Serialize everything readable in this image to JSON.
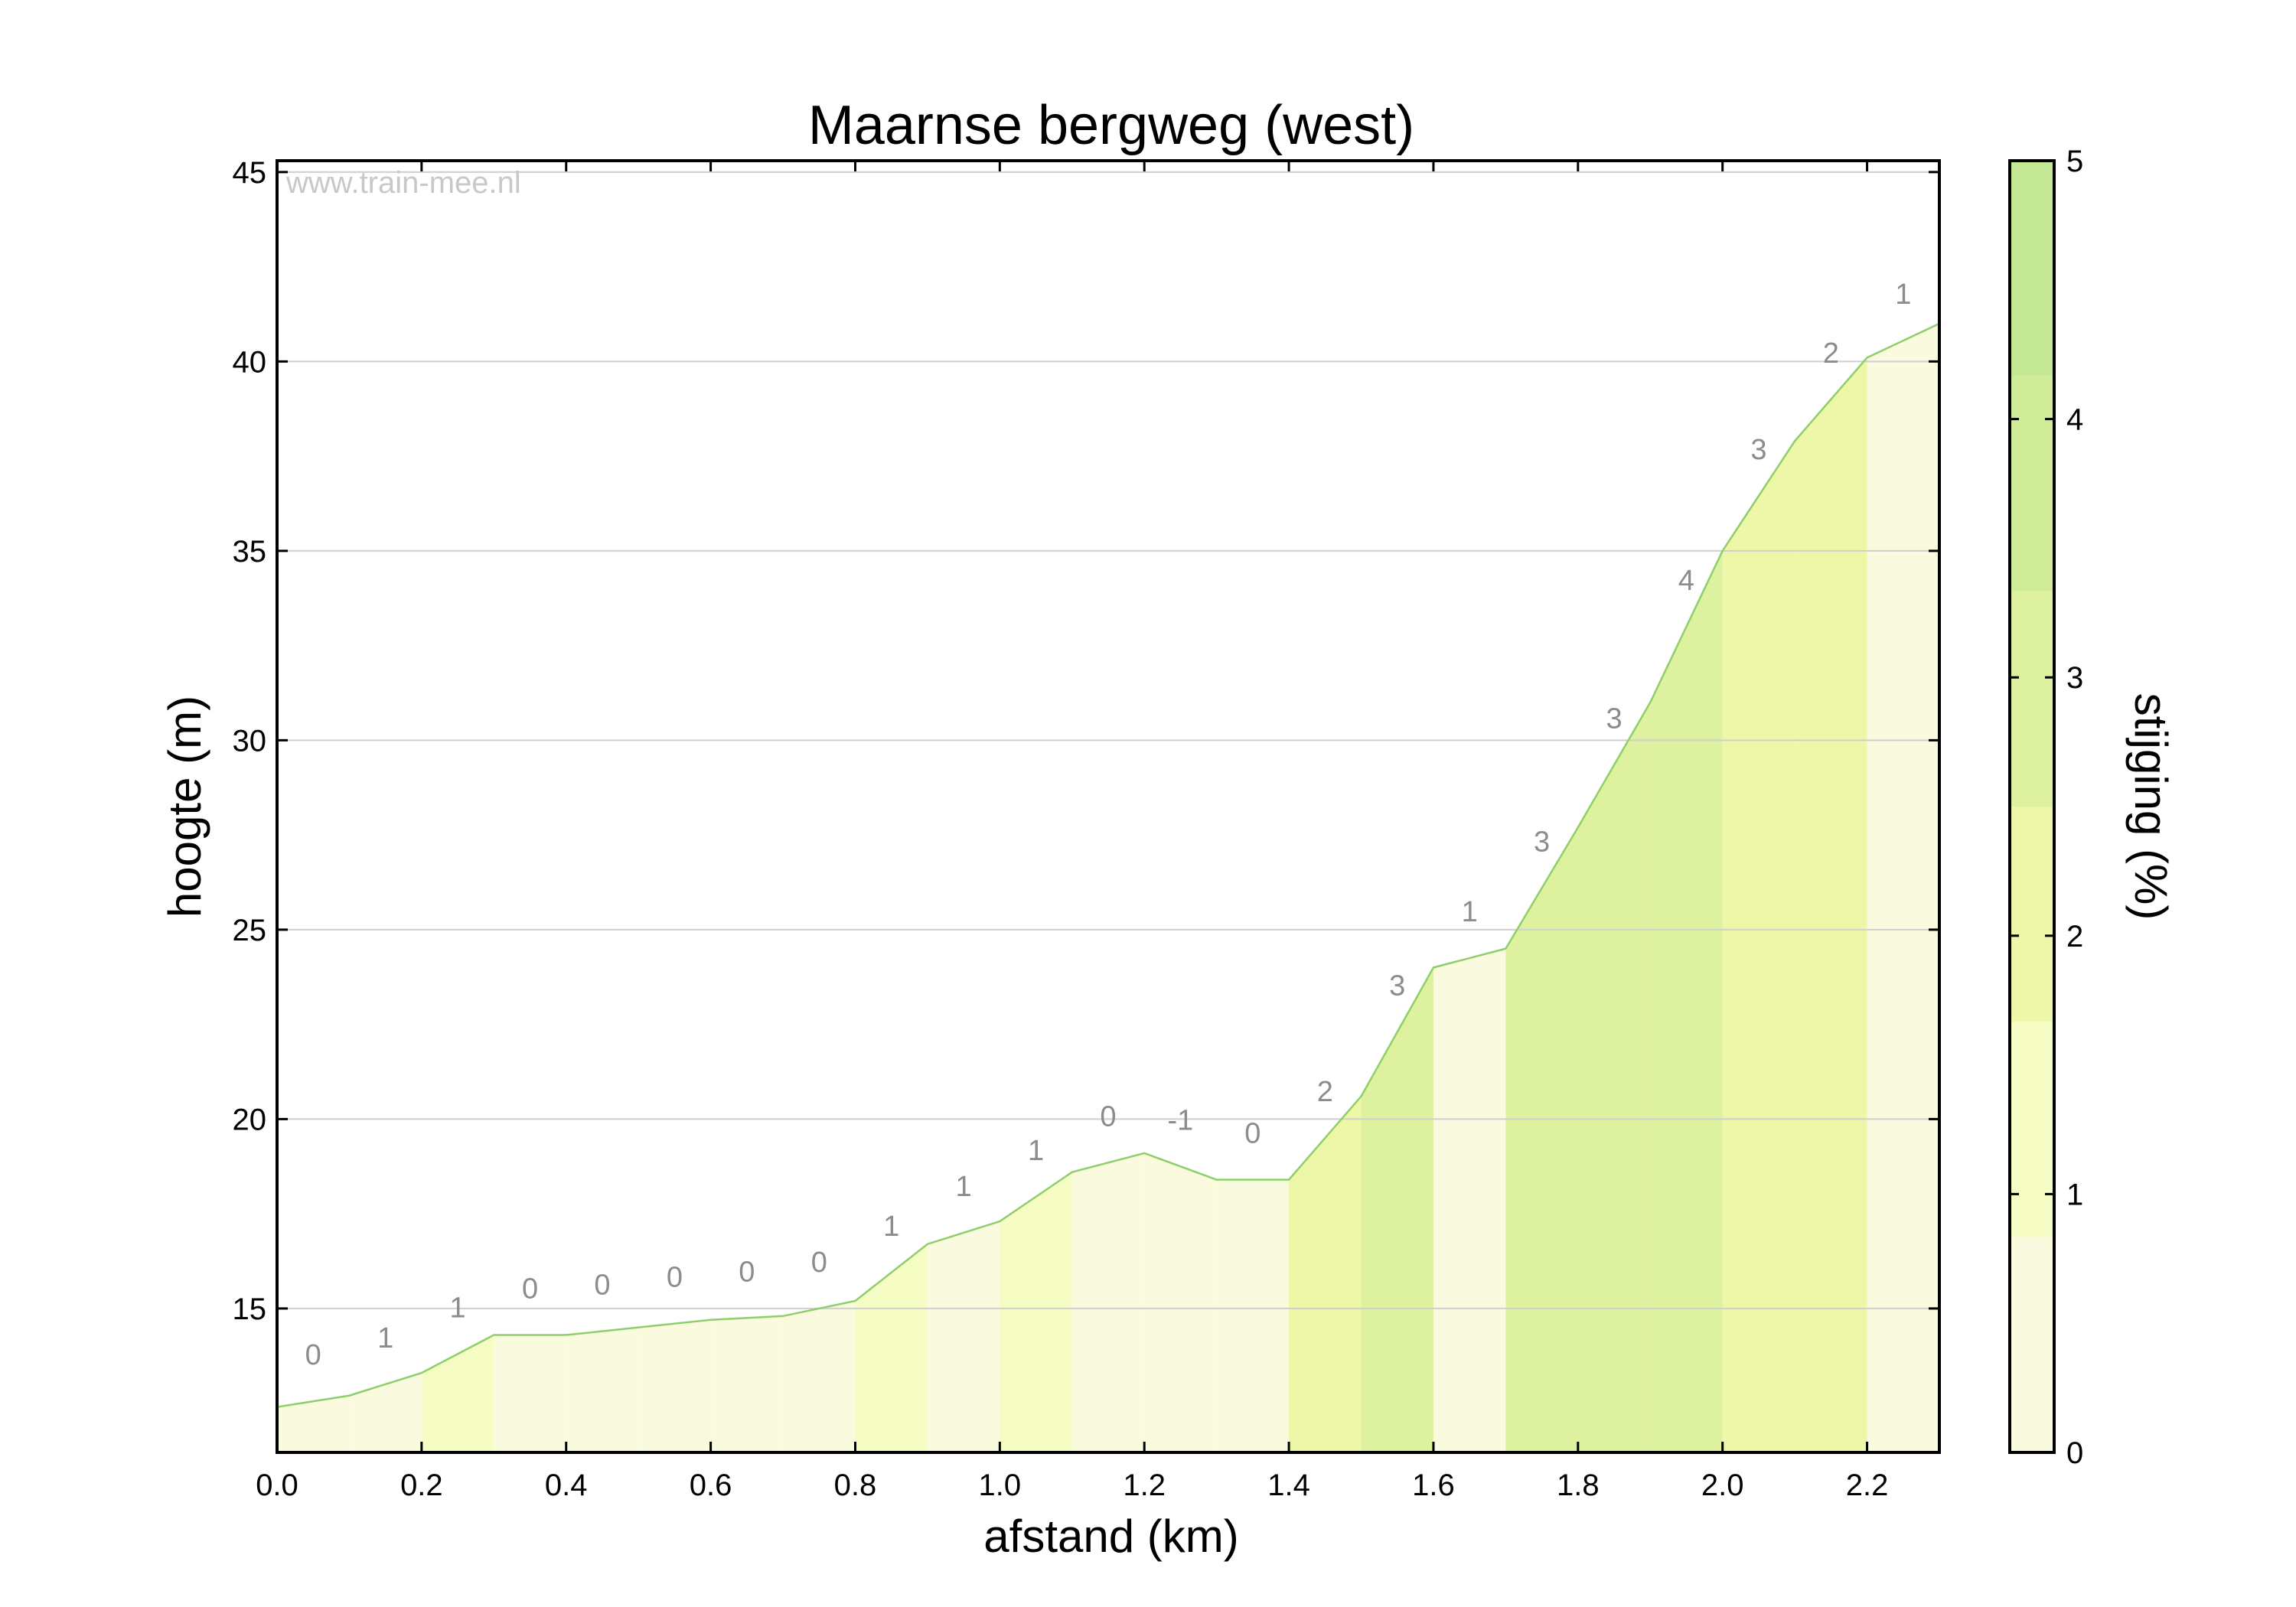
{
  "chart_data": {
    "type": "area",
    "title": "Maarnse bergweg (west)",
    "xlabel": "afstand (km)",
    "ylabel": "hoogte (m)",
    "xlim": [
      0.0,
      2.3
    ],
    "ylim": [
      11.2,
      45.3
    ],
    "x_ticks": [
      "0.0",
      "0.2",
      "0.4",
      "0.6",
      "0.8",
      "1.0",
      "1.2",
      "1.4",
      "1.6",
      "1.8",
      "2.0",
      "2.2"
    ],
    "y_ticks": [
      "15",
      "20",
      "25",
      "30",
      "35",
      "40",
      "45"
    ],
    "grid": "horizontal",
    "watermark": "www.train-mee.nl",
    "x": [
      0.0,
      0.1,
      0.2,
      0.3,
      0.4,
      0.5,
      0.6,
      0.7,
      0.8,
      0.9,
      1.0,
      1.1,
      1.2,
      1.3,
      1.4,
      1.5,
      1.6,
      1.7,
      1.8,
      1.9,
      2.0,
      2.1,
      2.2,
      2.3
    ],
    "elevation": [
      12.4,
      12.7,
      13.3,
      14.3,
      14.3,
      14.5,
      14.7,
      14.8,
      15.2,
      16.7,
      17.3,
      18.6,
      19.1,
      18.4,
      18.4,
      20.6,
      24.0,
      24.5,
      27.7,
      31.0,
      35.0,
      37.9,
      40.1,
      41.0
    ],
    "grade_labels": [
      "0",
      "1",
      "1",
      "0",
      "0",
      "0",
      "0",
      "0",
      "1",
      "1",
      "1",
      "0",
      "-1",
      "0",
      "2",
      "3",
      "1",
      "3",
      "3",
      "4",
      "3",
      "2",
      "1"
    ],
    "colorbar": {
      "label": "stijging (%)",
      "range": [
        0,
        5
      ],
      "ticks": [
        "0",
        "1",
        "2",
        "3",
        "4",
        "5"
      ],
      "colors": [
        "#fafbde",
        "#f5fcc4",
        "#eef7a8",
        "#def19e",
        "#d1ec96",
        "#c5e895"
      ]
    }
  }
}
